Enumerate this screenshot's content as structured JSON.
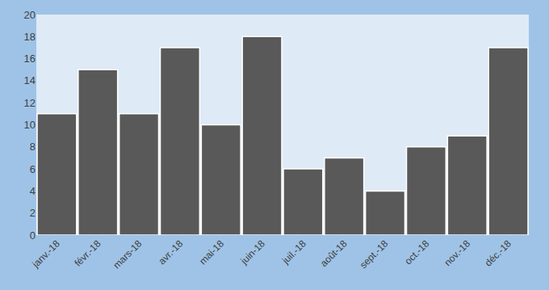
{
  "chart_data": {
    "type": "bar",
    "categories": [
      "janv.-18",
      "févr.-18",
      "mars-18",
      "avr.-18",
      "mai-18",
      "juin-18",
      "juil.-18",
      "août-18",
      "sept.-18",
      "oct.-18",
      "nov.-18",
      "déc.-18"
    ],
    "values": [
      11,
      15,
      11,
      17,
      10,
      18,
      6,
      7,
      4,
      8,
      9,
      17
    ],
    "color": "#595959",
    "ylim": [
      0,
      20
    ],
    "yticks": [
      0,
      2,
      4,
      6,
      8,
      10,
      12,
      14,
      16,
      18,
      20
    ],
    "grid": false
  }
}
